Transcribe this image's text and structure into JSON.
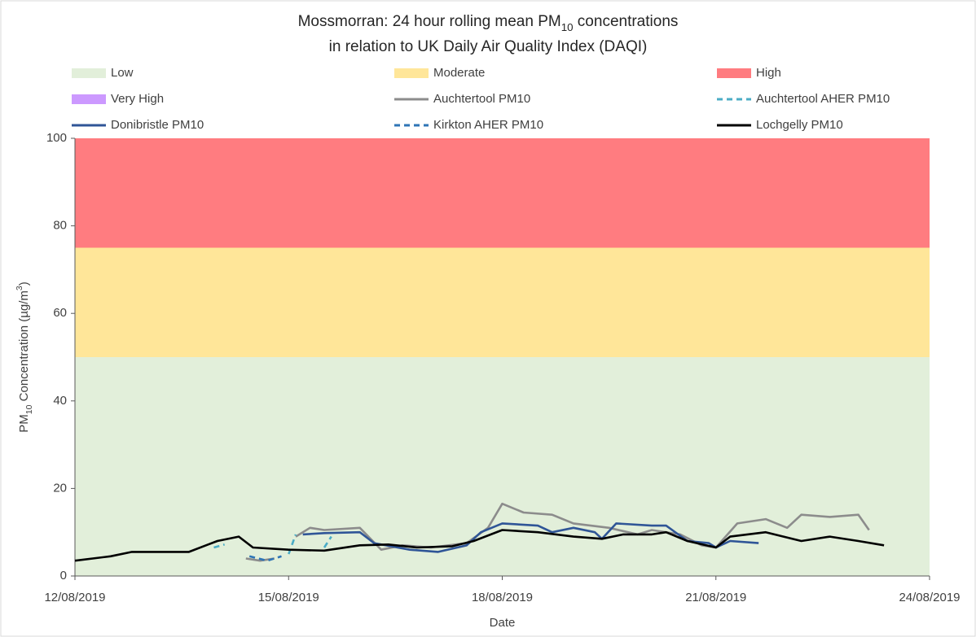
{
  "chart_data": {
    "type": "line",
    "title": [
      [
        {
          "text": "Mossmorran: 24 hour rolling mean PM"
        },
        {
          "text": "10",
          "sub": true
        },
        {
          "text": " concentrations"
        }
      ],
      [
        {
          "text": "in relation to UK Daily Air Quality Index (DAQI)"
        }
      ]
    ],
    "y_label": [
      {
        "text": "PM"
      },
      {
        "text": "10",
        "sub": true
      },
      {
        "text": " Concentration (µg/m"
      },
      {
        "text": "3",
        "sup": true
      },
      {
        "text": ")"
      }
    ],
    "x_label": "Date",
    "xlim": [
      0,
      12
    ],
    "xticks": [
      {
        "value": 0,
        "label": "12/08/2019"
      },
      {
        "value": 3,
        "label": "15/08/2019"
      },
      {
        "value": 6,
        "label": "18/08/2019"
      },
      {
        "value": 9,
        "label": "21/08/2019"
      },
      {
        "value": 12,
        "label": "24/08/2019"
      }
    ],
    "ylim": [
      0,
      100
    ],
    "yticks": [
      0,
      20,
      40,
      60,
      80,
      100
    ],
    "bands": [
      {
        "name": "Low",
        "color": "#e2efda",
        "range": [
          0,
          50
        ]
      },
      {
        "name": "Moderate",
        "color": "#ffe699",
        "range": [
          50,
          75
        ]
      },
      {
        "name": "High",
        "color": "#ff7c80",
        "range": [
          75,
          100
        ]
      },
      {
        "name": "Very High",
        "color": "#cc99ff"
      }
    ],
    "series": [
      {
        "name": "Auchtertool PM10",
        "color": "#8c8c8c",
        "dashed": false,
        "x": [
          2.4,
          2.6,
          2.8,
          2.95,
          3.1,
          3.3,
          3.5,
          4,
          4.3,
          4.6,
          5,
          5.5,
          5.8,
          6,
          6.3,
          6.7,
          7,
          7.5,
          7.9,
          8.1,
          8.5,
          8.8,
          9,
          9.3,
          9.7,
          10,
          10.2,
          10.6,
          11,
          11.15
        ],
        "values": [
          4,
          3.5,
          4,
          null,
          9,
          11,
          10.5,
          11,
          6,
          7,
          6.5,
          7.5,
          11,
          16.5,
          14.5,
          14,
          12,
          11,
          9.5,
          10.5,
          9.5,
          7,
          6.5,
          12,
          13,
          11,
          14,
          13.5,
          14,
          10.5
        ]
      },
      {
        "name": "Auchtertool AHER PM10",
        "color": "#4bacc6",
        "dashed": true,
        "x": [
          1.95,
          2.1,
          2.5,
          3.0,
          3.1,
          3.3,
          3.5,
          3.6
        ],
        "values": [
          6.5,
          7.2,
          null,
          5,
          9.5,
          null,
          6.5,
          9
        ]
      },
      {
        "name": "Donibristle PM10",
        "color": "#2f5597",
        "dashed": false,
        "x": [
          3.2,
          3.5,
          4,
          4.2,
          4.7,
          5.1,
          5.5,
          5.7,
          6,
          6.5,
          6.7,
          7,
          7.3,
          7.4,
          7.6,
          8.1,
          8.3,
          8.6,
          8.9,
          9,
          9.2,
          9.6
        ],
        "values": [
          9.5,
          9.8,
          10,
          7.5,
          6,
          5.5,
          7,
          10,
          12,
          11.5,
          10,
          11,
          10,
          8.5,
          12,
          11.5,
          11.5,
          8,
          7.5,
          6.5,
          8,
          7.5
        ]
      },
      {
        "name": "Kirkton AHER PM10",
        "color": "#2e75b6",
        "dashed": true,
        "x": [
          2.45,
          2.7,
          2.9
        ],
        "values": [
          4.5,
          3.5,
          4.5
        ]
      },
      {
        "name": "Lochgelly PM10",
        "color": "#000000",
        "dashed": false,
        "x": [
          0,
          0.5,
          0.8,
          1.6,
          2,
          2.3,
          2.5,
          3,
          3.5,
          4,
          4.4,
          4.8,
          5.3,
          5.6,
          6,
          6.5,
          7,
          7.4,
          7.7,
          8.1,
          8.3,
          8.6,
          9,
          9.2,
          9.7,
          10.2,
          10.6,
          11,
          11.36
        ],
        "values": [
          3.5,
          4.5,
          5.5,
          5.5,
          8,
          9,
          6.5,
          6,
          5.8,
          7,
          7.2,
          6.5,
          6.8,
          8,
          10.5,
          10,
          9,
          8.5,
          9.5,
          9.5,
          10,
          8,
          6.5,
          9,
          10,
          8,
          9,
          8,
          7
        ]
      }
    ]
  }
}
